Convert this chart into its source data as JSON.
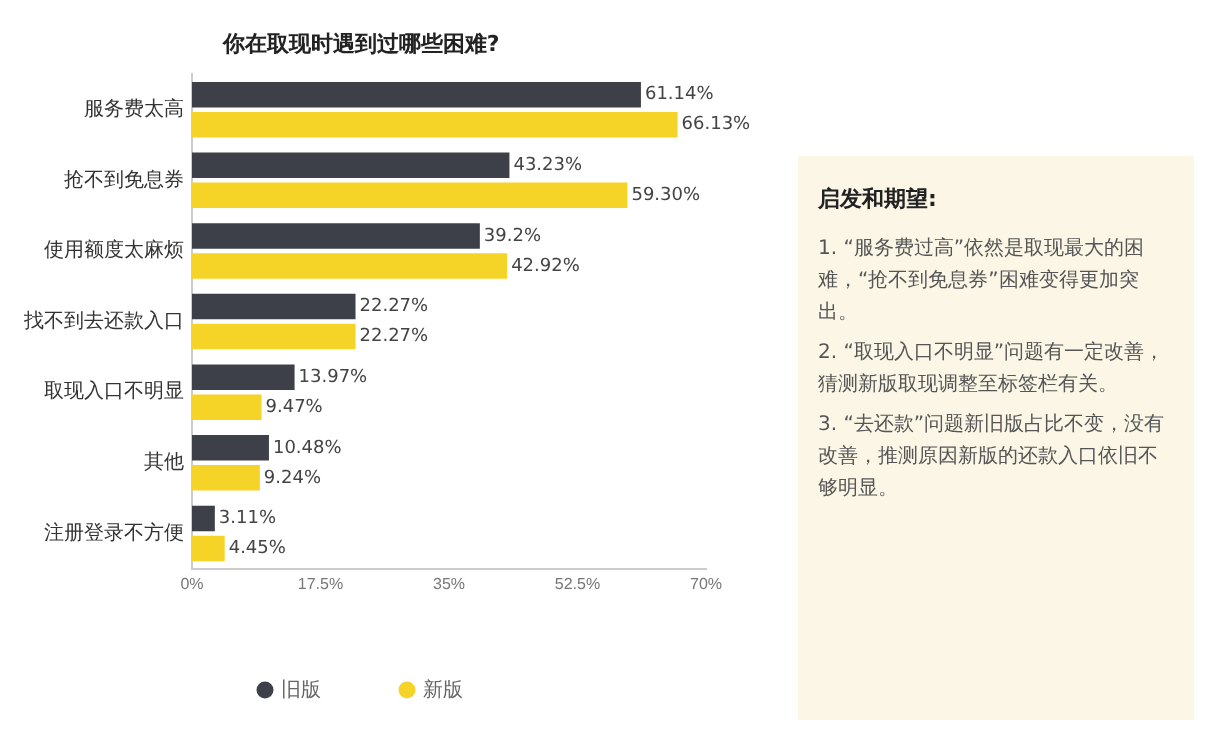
{
  "chart_data": [
    {
      "type": "bar",
      "orientation": "horizontal",
      "title": "你在取现时遇到过哪些困难?",
      "categories": [
        "服务费太高",
        "抢不到免息券",
        "使用额度太麻烦",
        "找不到去还款入口",
        "取现入口不明显",
        "其他",
        "注册登录不方便"
      ],
      "series": [
        {
          "name": "旧版",
          "color": "#3d4049",
          "values": [
            61.14,
            43.23,
            39.2,
            22.27,
            13.97,
            10.48,
            3.11
          ],
          "value_labels": [
            "61.14%",
            "43.23%",
            "39.2%",
            "22.27%",
            "13.97%",
            "10.48%",
            "3.11%"
          ]
        },
        {
          "name": "新版",
          "color": "#f5d327",
          "values": [
            66.13,
            59.3,
            42.92,
            22.27,
            9.47,
            9.24,
            4.45
          ],
          "value_labels": [
            "66.13%",
            "59.30%",
            "42.92%",
            "22.27%",
            "9.47%",
            "9.24%",
            "4.45%"
          ]
        }
      ],
      "xlim": [
        0,
        70
      ],
      "xticks": [
        {
          "value": 0,
          "label": "0%"
        },
        {
          "value": 17.5,
          "label": "17.5%"
        },
        {
          "value": 35,
          "label": "35%"
        },
        {
          "value": 52.5,
          "label": "52.5%"
        },
        {
          "value": 70,
          "label": "70%"
        }
      ],
      "grid": false,
      "legend": "bottom"
    },
    {
      "type": "other",
      "title": "启发和期望:",
      "annotations": [
        "1. “服务费过高”依然是取现最大的困难，“抢不到免息券”困难变得更加突出。",
        "2. “取现入口不明显”问题有一定改善，猜测新版取现调整至标签栏有关。",
        "3. “去还款”问题新旧版占比不变，没有改善，推测原因新版的还款入口依旧不够明显。"
      ]
    }
  ]
}
